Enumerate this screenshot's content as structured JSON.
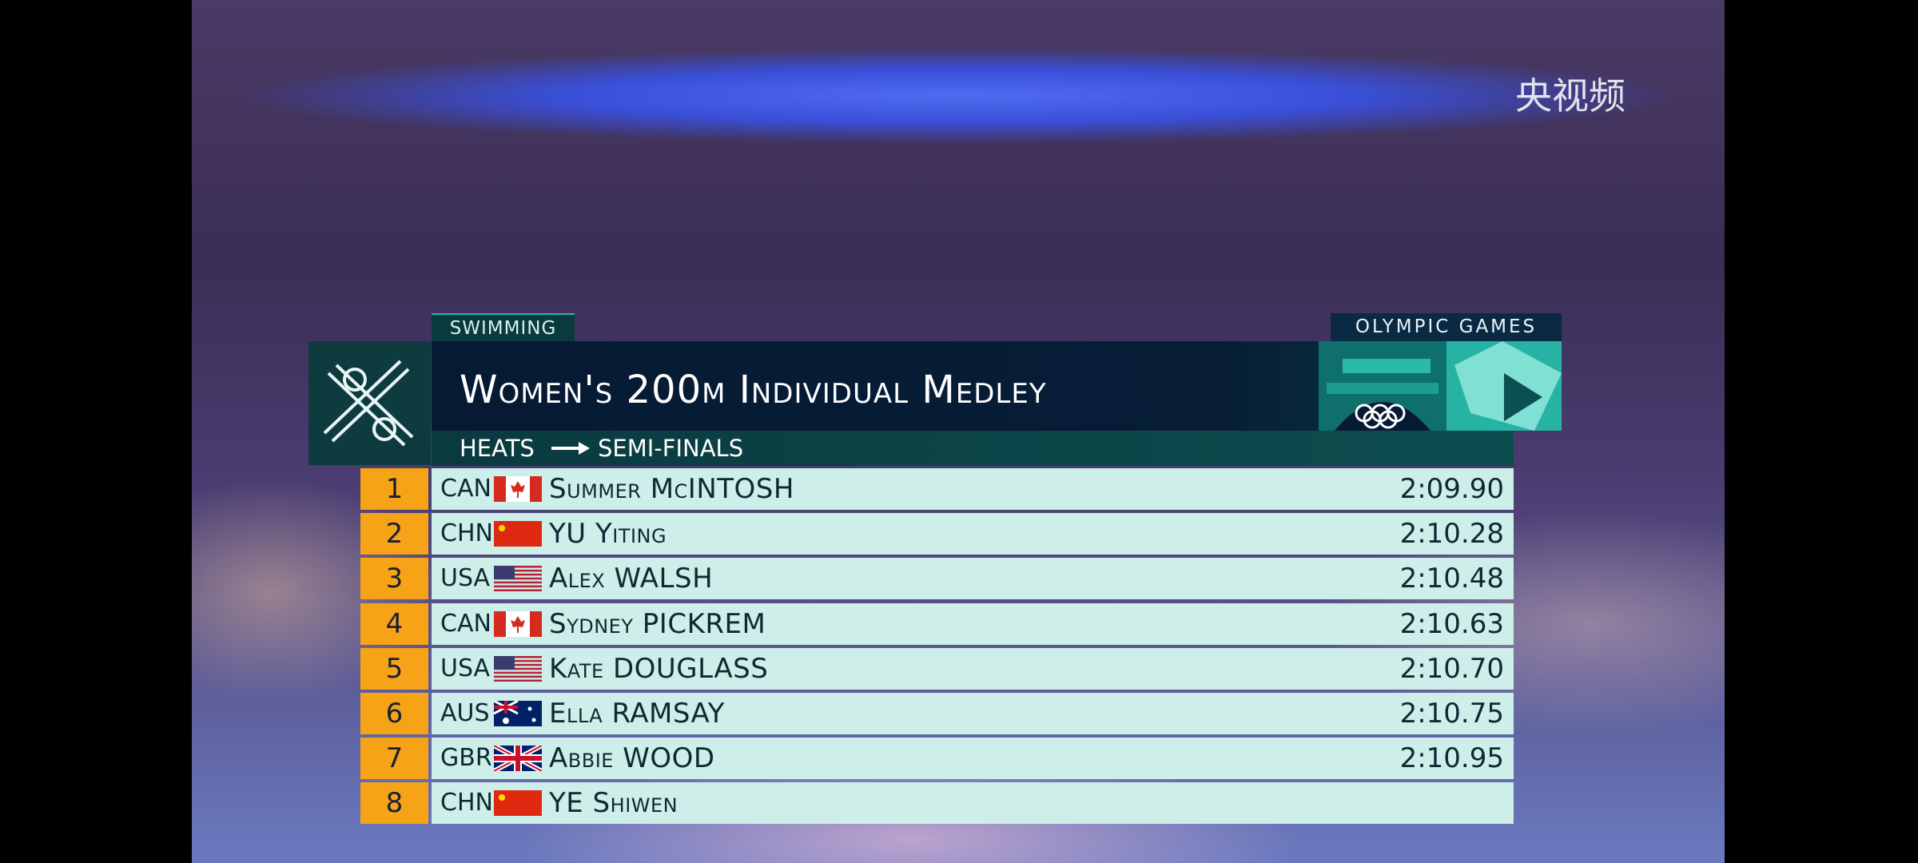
{
  "watermark": "央视频",
  "header": {
    "sport": "SWIMMING",
    "brand": "OLYMPIC GAMES",
    "event_title": "Women's 200m Individual Medley",
    "stage_from": "HEATS",
    "stage_to": "SEMI-FINALS"
  },
  "results": [
    {
      "rank": 1,
      "country": "CAN",
      "name": "Summer McINTOSH",
      "time": "2:09.90"
    },
    {
      "rank": 2,
      "country": "CHN",
      "name": "YU Yiting",
      "time": "2:10.28"
    },
    {
      "rank": 3,
      "country": "USA",
      "name": "Alex WALSH",
      "time": "2:10.48"
    },
    {
      "rank": 4,
      "country": "CAN",
      "name": "Sydney PICKREM",
      "time": "2:10.63"
    },
    {
      "rank": 5,
      "country": "USA",
      "name": "Kate DOUGLASS",
      "time": "2:10.70"
    },
    {
      "rank": 6,
      "country": "AUS",
      "name": "Ella RAMSAY",
      "time": "2:10.75"
    },
    {
      "rank": 7,
      "country": "GBR",
      "name": "Abbie WOOD",
      "time": "2:10.95"
    },
    {
      "rank": 8,
      "country": "CHN",
      "name": "YE Shiwen"
    }
  ]
}
